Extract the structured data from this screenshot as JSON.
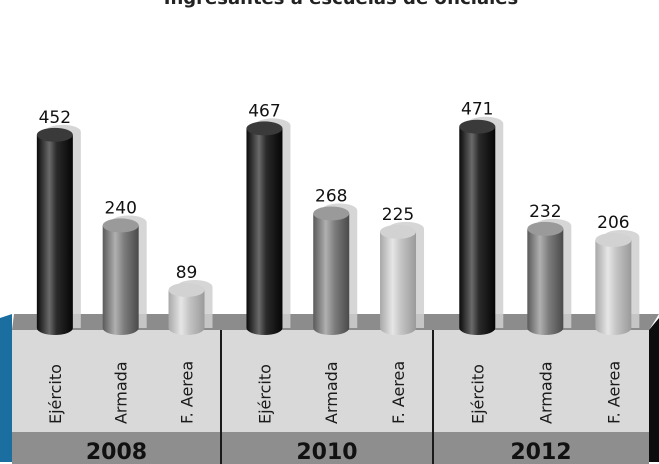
{
  "chart_data": {
    "type": "bar",
    "title": "Ingresantes a escuelas de oficiales",
    "groups": [
      "2008",
      "2010",
      "2012"
    ],
    "categories": [
      "Ejército",
      "Armada",
      "F. Aerea"
    ],
    "series": [
      {
        "group": "2008",
        "values": [
          452,
          240,
          89
        ]
      },
      {
        "group": "2010",
        "values": [
          467,
          268,
          225
        ]
      },
      {
        "group": "2012",
        "values": [
          471,
          232,
          206
        ]
      }
    ],
    "ylim": [
      0,
      500
    ],
    "grid": false,
    "legend": "none",
    "colors": {
      "Ejército": "#1e1e1e",
      "Armada": "#7a7a7a",
      "F. Aerea": "#bdbdbd",
      "floor": "#8c8c8c",
      "label_panel": "#d9d9d9",
      "year_band": "#8e8e8e",
      "left_accent": "#1a6fa0"
    }
  }
}
